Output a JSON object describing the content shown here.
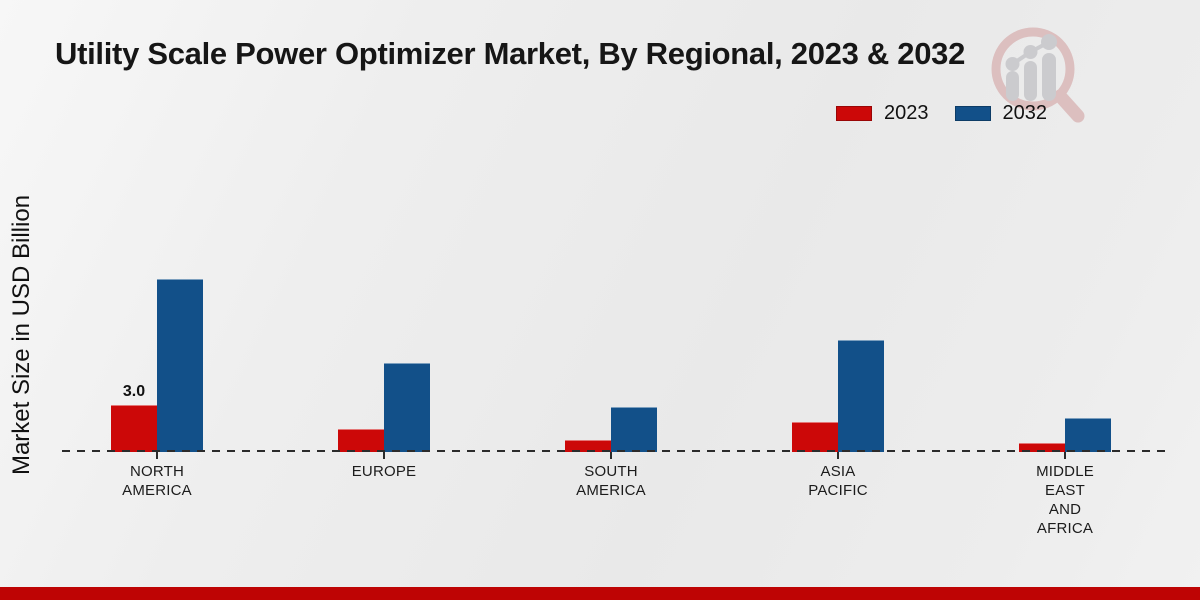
{
  "chart_data": {
    "type": "bar",
    "title": "Utility Scale Power Optimizer Market, By Regional, 2023 & 2032",
    "ylabel": "Market Size in USD Billion",
    "xlabel": "",
    "unit": "USD Billion",
    "categories": [
      "NORTH AMERICA",
      "EUROPE",
      "SOUTH AMERICA",
      "ASIA PACIFIC",
      "MIDDLE EAST AND AFRICA"
    ],
    "category_label_lines": [
      [
        "NORTH",
        "AMERICA"
      ],
      [
        "EUROPE"
      ],
      [
        "SOUTH",
        "AMERICA"
      ],
      [
        "ASIA",
        "PACIFIC"
      ],
      [
        "MIDDLE",
        "EAST",
        "AND",
        "AFRICA"
      ]
    ],
    "series": [
      {
        "name": "2023",
        "color": "#cc0808",
        "values": [
          3.0,
          1.5,
          0.8,
          1.9,
          0.6
        ]
      },
      {
        "name": "2032",
        "color": "#125089",
        "values": [
          11.1,
          5.7,
          2.9,
          7.2,
          2.2
        ]
      }
    ],
    "data_labels": [
      {
        "category_index": 0,
        "series_index": 0,
        "text": "3.0"
      }
    ],
    "ylim": [
      0,
      12
    ],
    "grid": false,
    "legend_position": "top-right",
    "baseline_style": "dashed-zero-line"
  },
  "branding": {
    "logo": "magnifier-bar-chart-logo",
    "footer_stripe_color": "#be0404"
  }
}
